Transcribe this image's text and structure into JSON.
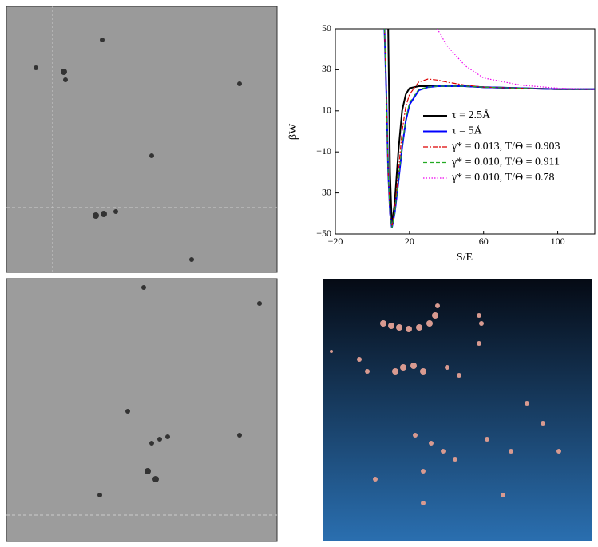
{
  "chart_data": {
    "type": "line",
    "xlabel": "S/E",
    "ylabel": "βW",
    "x": [
      6.5,
      7.5,
      8.5,
      9.5,
      10.5,
      12,
      14,
      16,
      18,
      20,
      25,
      30,
      35,
      40,
      50,
      60,
      80,
      100,
      120
    ],
    "series": [
      {
        "name": "τ = 2.5Å",
        "color": "#000000",
        "values": [
          null,
          null,
          50,
          -20,
          -46,
          -35,
          -10,
          10,
          18,
          21,
          22,
          22,
          22,
          22,
          22,
          21.5,
          21,
          20.5,
          20.5
        ]
      },
      {
        "name": "τ = 5Å",
        "color": "#0000ff",
        "values": [
          50,
          20,
          -20,
          -40,
          -47,
          -40,
          -25,
          -8,
          5,
          13,
          20,
          21.5,
          22,
          22,
          22,
          21.5,
          21,
          20.5,
          20.5
        ]
      },
      {
        "name": "γ* = 0.013, T/Θ = 0.903",
        "color": "#dd0000",
        "values": [
          50,
          20,
          -20,
          -40,
          -47,
          -38,
          -20,
          0,
          12,
          18,
          24,
          25.5,
          25,
          24,
          22.5,
          21.5,
          21,
          20.5,
          20.5
        ]
      },
      {
        "name": "γ* = 0.010, T/Θ = 0.911",
        "color": "#22aa22",
        "values": [
          50,
          20,
          -20,
          -40,
          -47,
          -40,
          -24,
          -7,
          6,
          14,
          20.5,
          21.5,
          22,
          22,
          22,
          21.5,
          21,
          20.5,
          20.5
        ]
      },
      {
        "name": "γ* = 0.010, T/Θ = 0.78",
        "color": "#ee00ee",
        "values": [
          null,
          null,
          null,
          null,
          null,
          null,
          null,
          null,
          null,
          null,
          null,
          null,
          50,
          42,
          32,
          26,
          22.5,
          21,
          20.5
        ]
      }
    ],
    "xlim": [
      -20,
      120
    ],
    "xticks": [
      {
        "value": -20,
        "label": "−20"
      },
      20,
      60,
      100
    ],
    "ylim": [
      -50,
      50
    ],
    "yticks": [
      {
        "value": -50,
        "label": "−50"
      },
      {
        "value": -30,
        "label": "−30"
      },
      {
        "value": -10,
        "label": "−10"
      },
      10,
      30,
      50
    ]
  }
}
